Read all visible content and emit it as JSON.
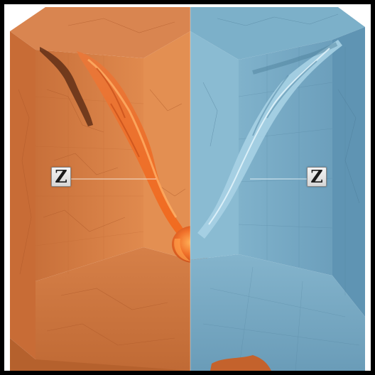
{
  "image": {
    "subject": "cube-cross-section-fire-and-ice",
    "labels": {
      "left_marker": "Z",
      "right_marker": "Z"
    },
    "colors": {
      "frame": "#000000",
      "background": "#ffffff",
      "warm_side": "#d97d42",
      "warm_side_dark": "#b9642f",
      "warm_fire": "#f0702a",
      "cool_side": "#74a9c4",
      "cool_side_dark": "#5a8ead",
      "cool_stream": "#a9d4e6"
    }
  }
}
